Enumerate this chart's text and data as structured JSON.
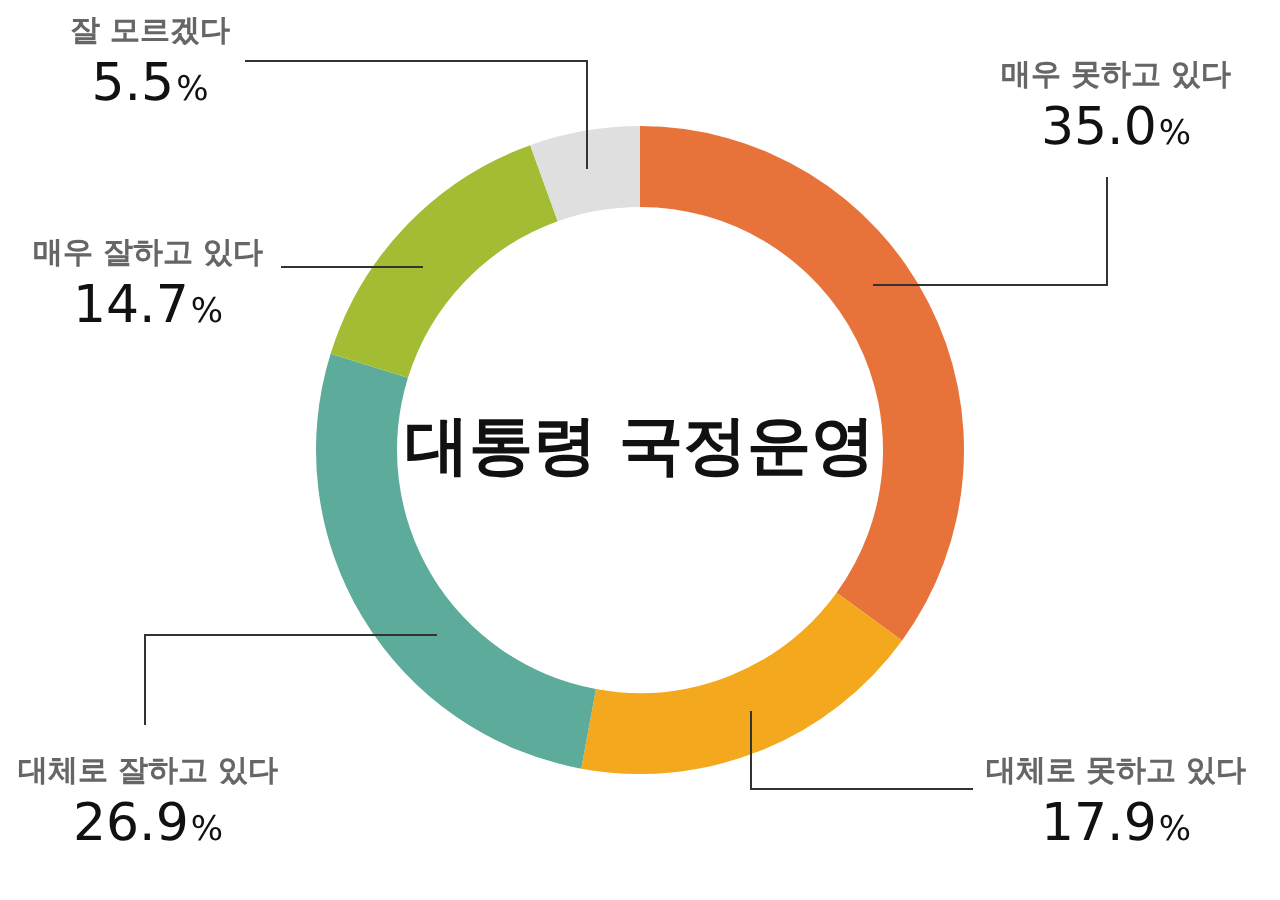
{
  "chart_data": {
    "type": "donut",
    "title": "대통령 국정운영",
    "categories": [
      "매우 못하고 있다",
      "대체로 못하고 있다",
      "대체로 잘하고 있다",
      "매우 잘하고 있다",
      "잘 모르겠다"
    ],
    "values": [
      35.0,
      17.9,
      26.9,
      14.7,
      5.5
    ],
    "colors": [
      "#e8733a",
      "#f4a81d",
      "#5dab9b",
      "#a2bd33",
      "#dfdfdf"
    ],
    "value_labels": [
      "35.0%",
      "17.9%",
      "26.9%",
      "14.7%",
      "5.5%"
    ]
  }
}
